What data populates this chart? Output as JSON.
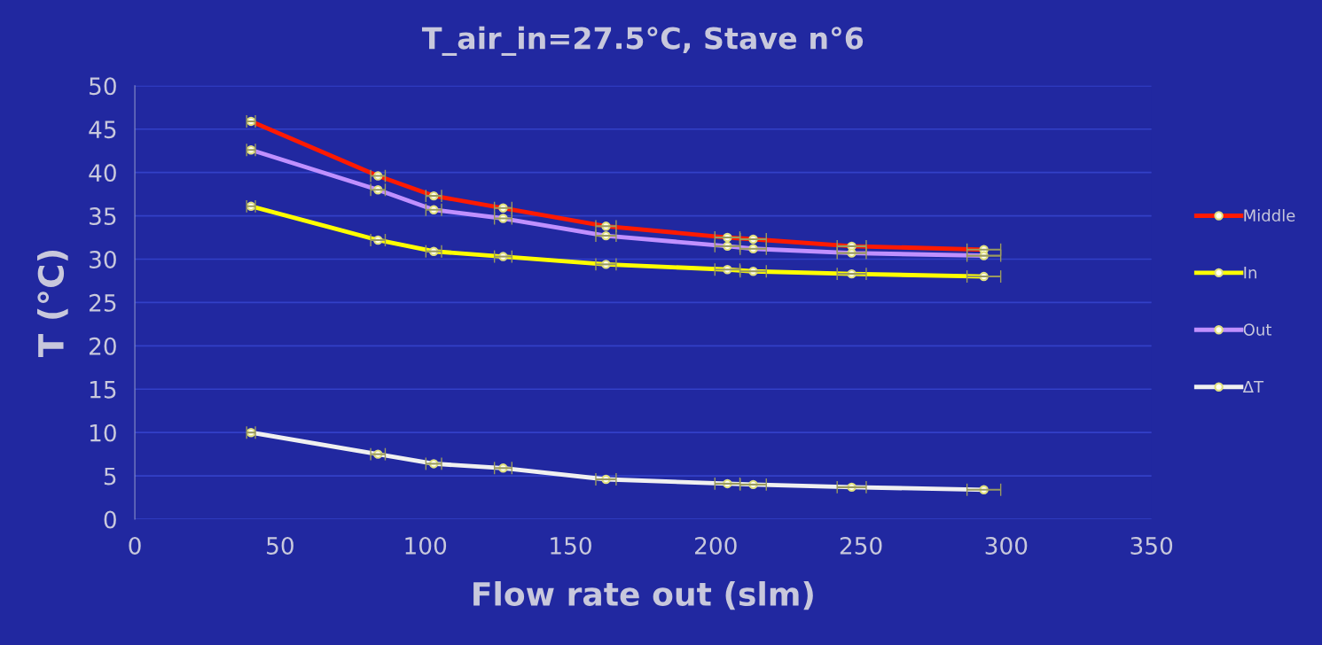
{
  "chart_data": {
    "type": "line",
    "title": "T_air_in=27.5°C, Stave n°6",
    "xlabel": "Flow rate out (slm)",
    "ylabel": "T (°C)",
    "x": [
      40.0,
      83.7,
      102.9,
      126.8,
      162.2,
      204.0,
      212.9,
      246.8,
      292.3
    ],
    "series": [
      {
        "name": "Middle",
        "color": "#ff1a00",
        "values": [
          45.9,
          39.6,
          37.3,
          35.9,
          33.8,
          32.5,
          32.3,
          31.5,
          31.1
        ],
        "xerrors": [
          1.5,
          2.5,
          2.7,
          3.0,
          3.5,
          4.3,
          4.5,
          5.0,
          5.8
        ]
      },
      {
        "name": "In",
        "color": "#ffff00",
        "values": [
          36.1,
          32.2,
          30.9,
          30.3,
          29.4,
          28.8,
          28.6,
          28.3,
          28.0
        ],
        "xerrors": [
          1.5,
          2.5,
          2.7,
          3.0,
          3.5,
          4.3,
          4.5,
          5.0,
          5.8
        ]
      },
      {
        "name": "Out",
        "color": "#c090ff",
        "values": [
          42.6,
          38.0,
          35.7,
          34.7,
          32.7,
          31.5,
          31.2,
          30.7,
          30.4
        ],
        "xerrors": [
          1.5,
          2.5,
          2.7,
          3.0,
          3.5,
          4.3,
          4.5,
          5.0,
          5.8
        ]
      },
      {
        "name": "ΔT",
        "color": "#f0f0f0",
        "values": [
          10.0,
          7.5,
          6.4,
          5.9,
          4.6,
          4.1,
          4.0,
          3.7,
          3.4
        ],
        "xerrors": [
          1.5,
          2.5,
          2.7,
          3.0,
          3.5,
          4.3,
          4.5,
          5.0,
          5.8
        ]
      }
    ],
    "xlim": [
      0,
      350
    ],
    "xticks": [
      0,
      50,
      100,
      150,
      200,
      250,
      300,
      350
    ],
    "ylim": [
      0,
      50
    ],
    "yticks": [
      0,
      5,
      10,
      15,
      20,
      25,
      30,
      35,
      40,
      45,
      50
    ],
    "grid": "y",
    "legend": "right",
    "marker": "circle",
    "line_style": "solid"
  }
}
